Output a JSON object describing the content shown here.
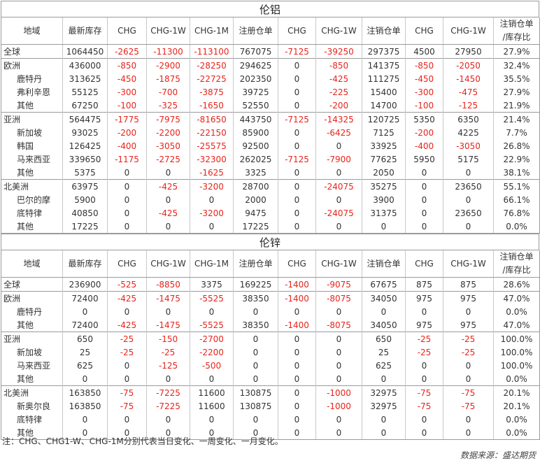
{
  "columns": [
    "地域",
    "最新库存",
    "CHG",
    "CHG-1W",
    "CHG-1M",
    "注册仓单",
    "CHG",
    "CHG-1W",
    "注销仓单",
    "CHG",
    "CHG-1W",
    "注销仓单/库存比"
  ],
  "sections": [
    {
      "title": "伦铝",
      "groups": [
        {
          "rows": [
            {
              "region": "全球",
              "sub": false,
              "cells": [
                "1064450",
                "-2625",
                "-11300",
                "-113100",
                "767075",
                "-7125",
                "-39250",
                "297375",
                "4500",
                "27950",
                "27.9%"
              ]
            }
          ]
        },
        {
          "rows": [
            {
              "region": "欧洲",
              "sub": false,
              "cells": [
                "436000",
                "-850",
                "-2900",
                "-28250",
                "294625",
                "0",
                "-850",
                "141375",
                "-850",
                "-2050",
                "32.4%"
              ]
            },
            {
              "region": "鹿特丹",
              "sub": true,
              "cells": [
                "313625",
                "-450",
                "-1875",
                "-22725",
                "202350",
                "0",
                "-425",
                "111275",
                "-450",
                "-1450",
                "35.5%"
              ]
            },
            {
              "region": "弗利辛恩",
              "sub": true,
              "cells": [
                "55125",
                "-300",
                "-700",
                "-3875",
                "39725",
                "0",
                "-225",
                "15400",
                "-300",
                "-475",
                "27.9%"
              ]
            },
            {
              "region": "其他",
              "sub": true,
              "cells": [
                "67250",
                "-100",
                "-325",
                "-1650",
                "52550",
                "0",
                "-200",
                "14700",
                "-100",
                "-125",
                "21.9%"
              ]
            }
          ]
        },
        {
          "rows": [
            {
              "region": "亚洲",
              "sub": false,
              "cells": [
                "564475",
                "-1775",
                "-7975",
                "-81650",
                "443750",
                "-7125",
                "-14325",
                "120725",
                "5350",
                "6350",
                "21.4%"
              ]
            },
            {
              "region": "新加坡",
              "sub": true,
              "cells": [
                "93025",
                "-200",
                "-2200",
                "-22150",
                "85900",
                "0",
                "-6425",
                "7125",
                "-200",
                "4225",
                "7.7%"
              ]
            },
            {
              "region": "韩国",
              "sub": true,
              "cells": [
                "126425",
                "-400",
                "-3050",
                "-25575",
                "92500",
                "0",
                "0",
                "33925",
                "-400",
                "-3050",
                "26.8%"
              ]
            },
            {
              "region": "马来西亚",
              "sub": true,
              "cells": [
                "339650",
                "-1175",
                "-2725",
                "-32300",
                "262025",
                "-7125",
                "-7900",
                "77625",
                "5950",
                "5175",
                "22.9%"
              ]
            },
            {
              "region": "其他",
              "sub": true,
              "cells": [
                "5375",
                "0",
                "0",
                "-1625",
                "3325",
                "0",
                "0",
                "2050",
                "0",
                "0",
                "38.1%"
              ]
            }
          ]
        },
        {
          "rows": [
            {
              "region": "北美洲",
              "sub": false,
              "cells": [
                "63975",
                "0",
                "-425",
                "-3200",
                "28700",
                "0",
                "-24075",
                "35275",
                "0",
                "23650",
                "55.1%"
              ]
            },
            {
              "region": "巴尔的摩",
              "sub": true,
              "cells": [
                "5900",
                "0",
                "0",
                "0",
                "2000",
                "0",
                "0",
                "3900",
                "0",
                "0",
                "66.1%"
              ]
            },
            {
              "region": "底特律",
              "sub": true,
              "cells": [
                "40850",
                "0",
                "-425",
                "-3200",
                "9475",
                "0",
                "-24075",
                "31375",
                "0",
                "23650",
                "76.8%"
              ]
            },
            {
              "region": "其他",
              "sub": true,
              "cells": [
                "17225",
                "0",
                "0",
                "0",
                "17225",
                "0",
                "0",
                "0",
                "0",
                "0",
                "0.0%"
              ]
            }
          ]
        }
      ]
    },
    {
      "title": "伦锌",
      "groups": [
        {
          "rows": [
            {
              "region": "全球",
              "sub": false,
              "cells": [
                "236900",
                "-525",
                "-8850",
                "3375",
                "169225",
                "-1400",
                "-9075",
                "67675",
                "875",
                "875",
                "28.6%"
              ]
            }
          ]
        },
        {
          "rows": [
            {
              "region": "欧洲",
              "sub": false,
              "cells": [
                "72400",
                "-425",
                "-1475",
                "-5525",
                "38350",
                "-1400",
                "-8075",
                "34050",
                "975",
                "975",
                "47.0%"
              ]
            },
            {
              "region": "鹿特丹",
              "sub": true,
              "cells": [
                "0",
                "0",
                "0",
                "0",
                "0",
                "0",
                "0",
                "0",
                "0",
                "0",
                "0.0%"
              ]
            },
            {
              "region": "其他",
              "sub": true,
              "cells": [
                "72400",
                "-425",
                "-1475",
                "-5525",
                "38350",
                "-1400",
                "-8075",
                "34050",
                "975",
                "975",
                "47.0%"
              ]
            }
          ]
        },
        {
          "rows": [
            {
              "region": "亚洲",
              "sub": false,
              "cells": [
                "650",
                "-25",
                "-150",
                "-2700",
                "0",
                "0",
                "0",
                "650",
                "-25",
                "-25",
                "100.0%"
              ]
            },
            {
              "region": "新加坡",
              "sub": true,
              "cells": [
                "25",
                "-25",
                "-25",
                "-2200",
                "0",
                "0",
                "0",
                "25",
                "-25",
                "-25",
                "100.0%"
              ]
            },
            {
              "region": "马来西亚",
              "sub": true,
              "cells": [
                "625",
                "0",
                "-125",
                "-500",
                "0",
                "0",
                "0",
                "625",
                "0",
                "0",
                "100.0%"
              ]
            },
            {
              "region": "其他",
              "sub": true,
              "cells": [
                "0",
                "0",
                "0",
                "0",
                "0",
                "0",
                "0",
                "0",
                "0",
                "0",
                "0.0%"
              ]
            }
          ]
        },
        {
          "rows": [
            {
              "region": "北美洲",
              "sub": false,
              "cells": [
                "163850",
                "-75",
                "-7225",
                "11600",
                "130875",
                "0",
                "-1000",
                "32975",
                "-75",
                "-75",
                "20.1%"
              ]
            },
            {
              "region": "新奥尔良",
              "sub": true,
              "cells": [
                "163850",
                "-75",
                "-7225",
                "11600",
                "130875",
                "0",
                "-1000",
                "32975",
                "-75",
                "-75",
                "20.1%"
              ]
            },
            {
              "region": "底特律",
              "sub": true,
              "cells": [
                "0",
                "0",
                "0",
                "0",
                "0",
                "0",
                "0",
                "0",
                "0",
                "0",
                "0.0%"
              ]
            },
            {
              "region": "其他",
              "sub": true,
              "cells": [
                "0",
                "0",
                "0",
                "0",
                "0",
                "0",
                "0",
                "0",
                "0",
                "0",
                "0.0%"
              ]
            }
          ]
        }
      ]
    }
  ],
  "note": "注：CHG、CHG1-W、CHG-1M分别代表当日变化、一周变化、一月变化。",
  "source": "数据来源：盛达期货",
  "colors": {
    "negative": "#e8231a",
    "text": "#333333",
    "border": "#9a9a9a"
  }
}
